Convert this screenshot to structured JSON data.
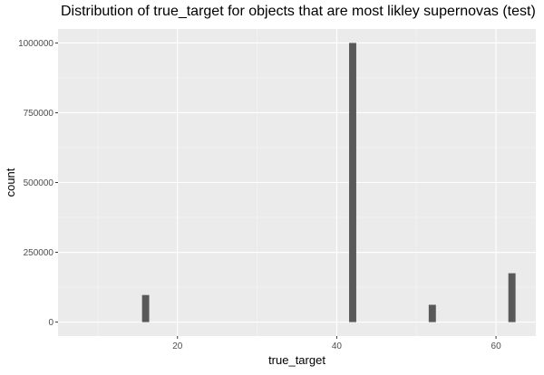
{
  "chart_data": {
    "type": "bar",
    "title": "Distribution of true_target for objects that are most likley supernovas (test)",
    "xlabel": "true_target",
    "ylabel": "count",
    "xlim": [
      5,
      65
    ],
    "ylim": [
      -50000,
      1050000
    ],
    "x_ticks": [
      20,
      40,
      60
    ],
    "x_tick_labels": [
      "20",
      "40",
      "60"
    ],
    "y_ticks": [
      0,
      250000,
      500000,
      750000,
      1000000
    ],
    "y_tick_labels": [
      "0",
      "250000",
      "500000",
      "750000",
      "1000000"
    ],
    "bar_width": 0.9,
    "bars": [
      {
        "x": 16,
        "count": 97000
      },
      {
        "x": 42,
        "count": 1000000
      },
      {
        "x": 52,
        "count": 62000
      },
      {
        "x": 62,
        "count": 175000
      }
    ],
    "grid": true,
    "colors": {
      "panel_background": "#ebebeb",
      "grid_major": "#ffffff",
      "grid_minor": "#f5f5f5",
      "bar_fill": "#595959"
    }
  }
}
